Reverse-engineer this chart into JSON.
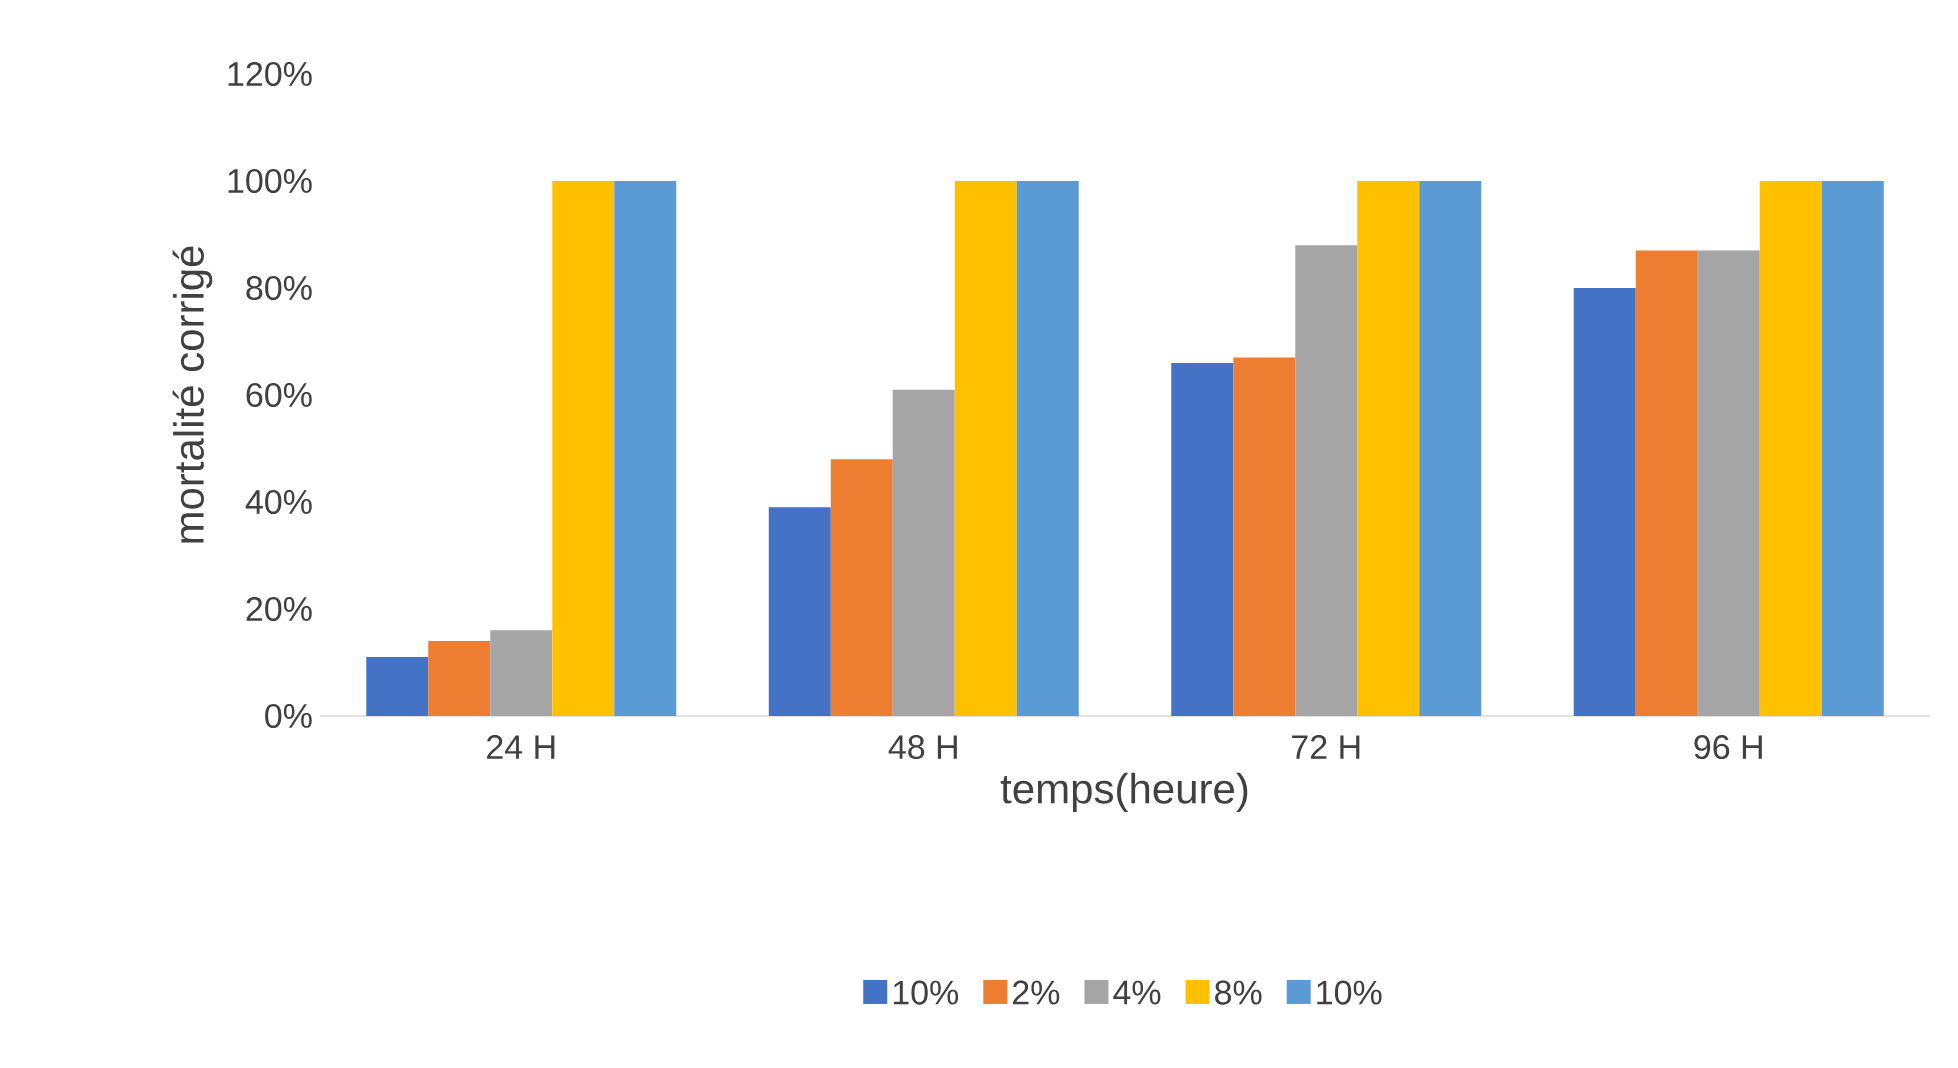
{
  "chart_data": {
    "type": "bar",
    "xlabel": "temps(heure)",
    "ylabel": "mortalité corrigé",
    "categories": [
      "24 H",
      "48 H",
      "72 H",
      "96 H"
    ],
    "series": [
      {
        "name": "10%",
        "color": "#4472c4",
        "values": [
          11,
          39,
          66,
          80
        ]
      },
      {
        "name": "2%",
        "color": "#ed7d31",
        "values": [
          14,
          48,
          67,
          87
        ]
      },
      {
        "name": "4%",
        "color": "#a5a5a5",
        "values": [
          16,
          61,
          88,
          87
        ]
      },
      {
        "name": "8%",
        "color": "#ffc000",
        "values": [
          100,
          100,
          100,
          100
        ]
      },
      {
        "name": "10%",
        "color": "#5b9bd5",
        "values": [
          100,
          100,
          100,
          100
        ]
      }
    ],
    "ylim": [
      0,
      120
    ],
    "yticks": [
      {
        "value": 0,
        "label": "0%"
      },
      {
        "value": 20,
        "label": "20%"
      },
      {
        "value": 40,
        "label": "40%"
      },
      {
        "value": 60,
        "label": "60%"
      },
      {
        "value": 80,
        "label": "80%"
      },
      {
        "value": 100,
        "label": "100%"
      },
      {
        "value": 120,
        "label": "120%"
      }
    ],
    "grid": false,
    "legend": "bottom"
  }
}
